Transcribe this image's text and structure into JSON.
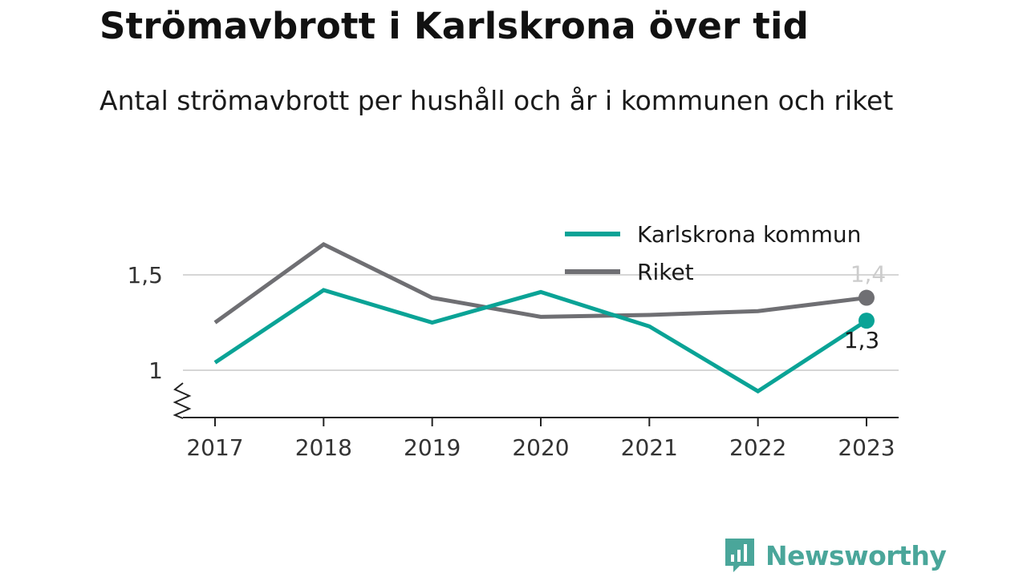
{
  "title": "Strömavbrott i Karlskrona över tid",
  "subtitle": "Antal strömavbrott per hushåll och år i kommunen och riket",
  "brand": {
    "name": "Newsworthy",
    "color": "#4aa69a"
  },
  "chart_data": {
    "type": "line",
    "title": "Strömavbrott i Karlskrona över tid",
    "subtitle": "Antal strömavbrott per hushåll och år i kommunen och riket",
    "x": [
      "2017",
      "2018",
      "2019",
      "2020",
      "2021",
      "2022",
      "2023"
    ],
    "series": [
      {
        "name": "Karlskrona kommun",
        "color": "#0aa396",
        "values": [
          1.04,
          1.42,
          1.25,
          1.41,
          1.23,
          0.89,
          1.26
        ],
        "end_label": "1,3"
      },
      {
        "name": "Riket",
        "color": "#6f6f73",
        "values": [
          1.25,
          1.66,
          1.38,
          1.28,
          1.29,
          1.31,
          1.38
        ],
        "end_label": "1,4"
      }
    ],
    "y_ticks": [
      {
        "value": 1.0,
        "label": "1"
      },
      {
        "value": 1.5,
        "label": "1,5"
      }
    ],
    "ylim": [
      0.76,
      1.76
    ],
    "grid": true,
    "y_axis_break": true,
    "legend_position": "top-right"
  }
}
